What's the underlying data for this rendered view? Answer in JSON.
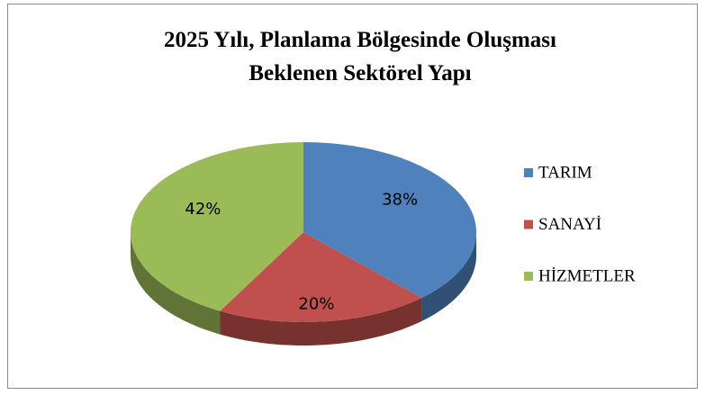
{
  "chart_data": {
    "type": "pie3d",
    "title": [
      "2025 Yılı, Planlama Bölgesinde Oluşması",
      "Beklenen Sektörel Yapı"
    ],
    "categories": [
      "TARIM",
      "SANAYİ",
      "HİZMETLER"
    ],
    "values": [
      38,
      20,
      42
    ],
    "value_labels": [
      "38%",
      "20%",
      "42%"
    ],
    "colors": [
      "#4f81bd",
      "#c0504d",
      "#9bbb59"
    ],
    "legend": "right"
  }
}
